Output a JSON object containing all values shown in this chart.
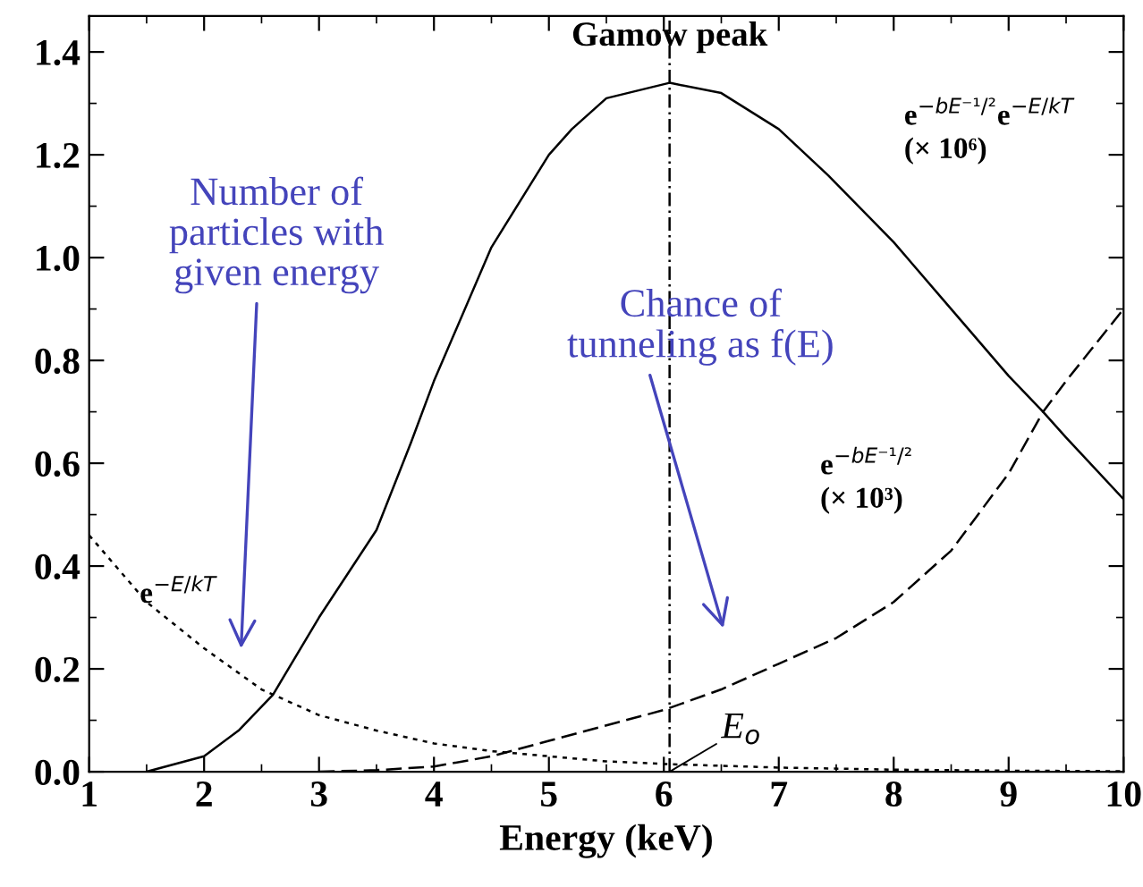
{
  "chart_data": {
    "type": "line",
    "xlabel": "Energy (keV)",
    "xlim": [
      1,
      10
    ],
    "ylim": [
      0,
      1.47
    ],
    "xticks": [
      1,
      2,
      3,
      4,
      5,
      6,
      7,
      8,
      9,
      10
    ],
    "yticks": [
      {
        "value": 0,
        "label": "0.0"
      },
      0.2,
      0.4,
      0.6,
      0.8,
      {
        "value": 1,
        "label": "1.0"
      },
      1.2,
      1.4
    ],
    "grid": false,
    "legend": false,
    "series": [
      {
        "color": "#000000",
        "line_style": "solid",
        "x": [
          1.5,
          2,
          2.3,
          2.6,
          3,
          3.5,
          3.8,
          4,
          4.5,
          5,
          5.2,
          5.5,
          6.05,
          6.5,
          7,
          7.43,
          8,
          8.5,
          9,
          9.3,
          9.5,
          10
        ],
        "values": [
          0.0,
          0.03,
          0.08,
          0.15,
          0.3,
          0.47,
          0.64,
          0.76,
          1.02,
          1.2,
          1.25,
          1.31,
          1.34,
          1.32,
          1.25,
          1.16,
          1.03,
          0.9,
          0.77,
          0.7,
          0.65,
          0.53
        ]
      },
      {
        "color": "#000000",
        "line_style": "dashed",
        "x": [
          3,
          3.5,
          4,
          4.5,
          5,
          5.5,
          6,
          6.5,
          7,
          7.5,
          8,
          8.5,
          9,
          9.3,
          9.5,
          10
        ],
        "values": [
          0.0,
          0.003,
          0.01,
          0.03,
          0.06,
          0.09,
          0.12,
          0.16,
          0.21,
          0.26,
          0.33,
          0.43,
          0.58,
          0.7,
          0.76,
          0.9
        ]
      },
      {
        "color": "#000000",
        "line_style": "dotted",
        "x": [
          1,
          1.5,
          2,
          2.5,
          3,
          3.5,
          4,
          4.5,
          5,
          5.5,
          6,
          7,
          8,
          9,
          10
        ],
        "values": [
          0.46,
          0.33,
          0.24,
          0.16,
          0.11,
          0.08,
          0.055,
          0.04,
          0.03,
          0.02,
          0.015,
          0.008,
          0.004,
          0.002,
          0.001
        ]
      }
    ],
    "ref_lines": [
      {
        "axis": "x",
        "value": 6.05,
        "line_style": "dashdot",
        "color": "#000000"
      }
    ],
    "annotations": [
      {
        "text": "Gamow peak",
        "x": 6.05,
        "y": 1.34
      },
      "e$^{−bE⁻¹/²}$e$^{−E/kT}$\n(× 10⁶)",
      "e$^{−bE⁻¹/²}$\n(× 10³)",
      "e$^{−E/kT}$",
      {
        "text": "E$_{o}$",
        "x": 6.05,
        "y": 0.0
      },
      "Number of\nparticles with\ngiven energy",
      "Chance of\ntunneling as f(E)"
    ]
  }
}
